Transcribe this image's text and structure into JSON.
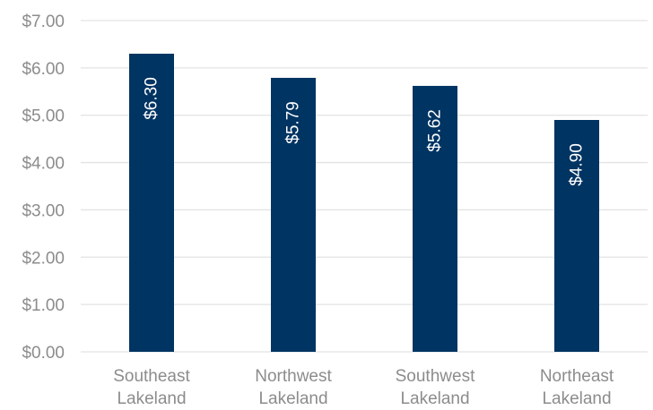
{
  "chart_data": {
    "type": "bar",
    "title": "",
    "xlabel": "",
    "ylabel": "",
    "categories": [
      [
        "Southeast",
        "Lakeland"
      ],
      [
        "Northwest",
        "Lakeland"
      ],
      [
        "Southwest",
        "Lakeland"
      ],
      [
        "Northeast",
        "Lakeland"
      ]
    ],
    "values": [
      6.3,
      5.79,
      5.62,
      4.9
    ],
    "data_labels": [
      "$6.30",
      "$5.79",
      "$5.62",
      "$4.90"
    ],
    "ylim": [
      0,
      7
    ],
    "yticks": [
      0,
      1,
      2,
      3,
      4,
      5,
      6,
      7
    ],
    "ytick_labels": [
      "$0.00",
      "$1.00",
      "$2.00",
      "$3.00",
      "$4.00",
      "$5.00",
      "$6.00",
      "$7.00"
    ],
    "grid": true,
    "legend": "none",
    "colors": {
      "bar": "#003462",
      "grid": "#e3e3e3",
      "text": "#8c8c8c",
      "data_label": "#ffffff"
    }
  }
}
